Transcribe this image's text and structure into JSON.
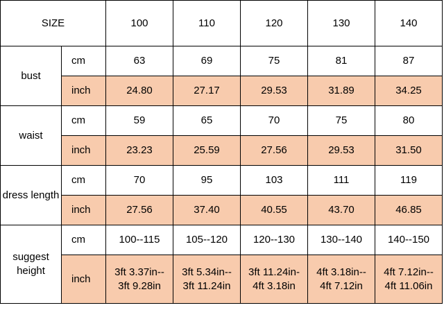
{
  "table": {
    "header": {
      "label": "SIZE",
      "sizes": [
        "100",
        "110",
        "120",
        "130",
        "140"
      ]
    },
    "groups": [
      {
        "label": "bust",
        "rows": [
          {
            "unit": "cm",
            "values": [
              "63",
              "69",
              "75",
              "81",
              "87"
            ]
          },
          {
            "unit": "inch",
            "values": [
              "24.80",
              "27.17",
              "29.53",
              "31.89",
              "34.25"
            ]
          }
        ]
      },
      {
        "label": "waist",
        "rows": [
          {
            "unit": "cm",
            "values": [
              "59",
              "65",
              "70",
              "75",
              "80"
            ]
          },
          {
            "unit": "inch",
            "values": [
              "23.23",
              "25.59",
              "27.56",
              "29.53",
              "31.50"
            ]
          }
        ]
      },
      {
        "label": "dress length",
        "rows": [
          {
            "unit": "cm",
            "values": [
              "70",
              "95",
              "103",
              "111",
              "119"
            ]
          },
          {
            "unit": "inch",
            "values": [
              "27.56",
              "37.40",
              "40.55",
              "43.70",
              "46.85"
            ]
          }
        ]
      },
      {
        "label": "suggest height",
        "rows": [
          {
            "unit": "cm",
            "values": [
              "100--115",
              "105--120",
              "120--130",
              "130--140",
              "140--150"
            ]
          },
          {
            "unit": "inch",
            "values": [
              [
                "3ft 3.37in--",
                "3ft 9.28in"
              ],
              [
                "3ft 5.34in--",
                "3ft 11.24in"
              ],
              [
                "3ft 11.24in-",
                "4ft 3.18in"
              ],
              [
                "4ft 3.18in--",
                "4ft 7.12in"
              ],
              [
                "4ft 7.12in--",
                "4ft 11.06in"
              ]
            ]
          }
        ]
      }
    ]
  }
}
